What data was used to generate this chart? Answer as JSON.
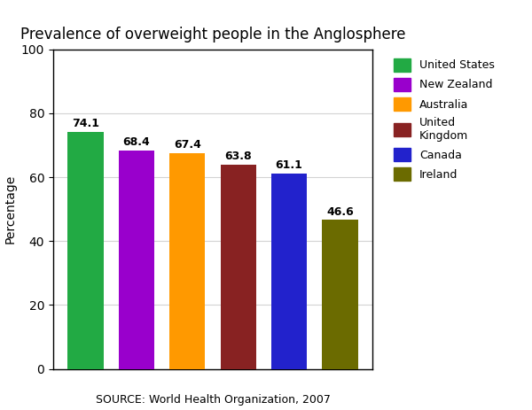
{
  "title": "Prevalence of overweight people in the Anglosphere",
  "ylabel": "Percentage",
  "source_label": "SOURCE: World Health Organization, 2007",
  "categories": [
    "United States",
    "New Zealand",
    "Australia",
    "United Kingdom",
    "Canada",
    "Ireland"
  ],
  "values": [
    74.1,
    68.4,
    67.4,
    63.8,
    61.1,
    46.6
  ],
  "bar_colors": [
    "#22aa44",
    "#9900cc",
    "#ff9900",
    "#882222",
    "#2222cc",
    "#6b6b00"
  ],
  "ylim": [
    0,
    100
  ],
  "yticks": [
    0,
    20,
    40,
    60,
    80,
    100
  ],
  "legend_labels": [
    "United States",
    "New Zealand",
    "Australia",
    "United\nKingdom",
    "Canada",
    "Ireland"
  ],
  "background_color": "#ffffff",
  "title_fontsize": 12,
  "label_fontsize": 10,
  "value_fontsize": 9,
  "bar_width": 0.7
}
